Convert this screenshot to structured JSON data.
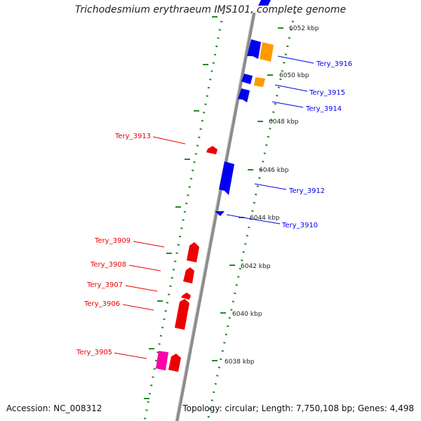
{
  "title": "Trichodesmium erythraeum IMS101, complete genome",
  "accession": "Accession: NC_008312",
  "summary": "Topology: circular; Length: 7,750,108 bp; Genes: 4,498",
  "colors": {
    "backbone": "#8c8c8c",
    "ticks": "#228b22",
    "forward_gene": "#0000ee",
    "reverse_gene": "#ee0000",
    "orange_feature": "#ff9900",
    "pink_feature": "#ff00aa"
  },
  "scale_labels": [
    "6052 kbp",
    "6050 kbp",
    "6048 kbp",
    "6046 kbp",
    "6044 kbp",
    "6042 kbp",
    "6040 kbp",
    "6038 kbp"
  ],
  "forward_labels": [
    "Tery_3916",
    "Tery_3915",
    "Tery_3914",
    "Tery_3912",
    "Tery_3910"
  ],
  "reverse_labels": [
    "Tery_3913",
    "Tery_3909",
    "Tery_3908",
    "Tery_3907",
    "Tery_3906",
    "Tery_3905"
  ]
}
